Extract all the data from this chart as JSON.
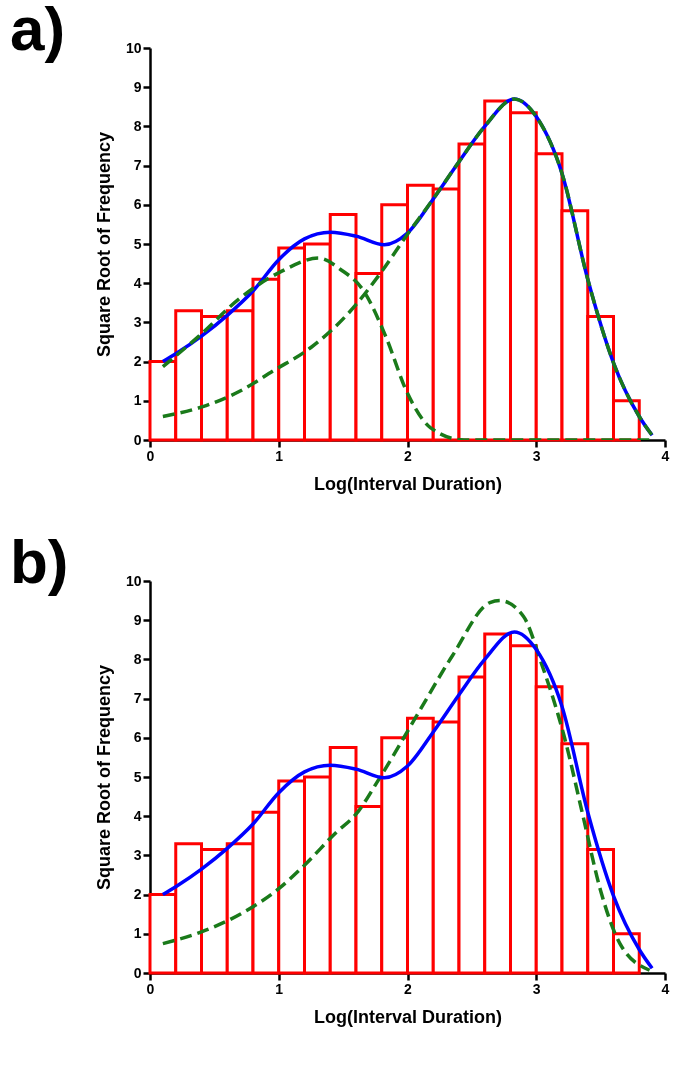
{
  "chart_data": [
    {
      "type": "histogram",
      "title": "a)",
      "xlabel": "Log(Interval Duration)",
      "ylabel": "Square Root of Frequency",
      "xlim": [
        0,
        4
      ],
      "xticks": [
        0,
        1,
        2,
        3,
        4
      ],
      "ylim": [
        0,
        10
      ],
      "yticks": [
        0,
        1,
        2,
        3,
        4,
        5,
        6,
        7,
        8,
        9,
        10
      ],
      "bins": [
        0,
        0.2,
        0.4,
        0.6,
        0.8,
        1.0,
        1.2,
        1.4,
        1.6,
        1.8,
        2.0,
        2.2,
        2.4,
        2.6,
        2.8,
        3.0,
        3.2,
        3.4,
        3.6,
        3.8
      ],
      "series": [
        {
          "type": "histogram",
          "color": "#ff0000",
          "values": [
            2.0,
            3.3,
            3.15,
            3.3,
            4.1,
            4.9,
            5.0,
            5.75,
            4.25,
            6.0,
            6.5,
            6.4,
            7.55,
            8.65,
            8.35,
            7.3,
            5.85,
            3.15,
            1.0
          ]
        },
        {
          "type": "line",
          "color": "#0000ff",
          "line_style": "solid",
          "x": [
            0.1,
            0.2,
            0.4,
            0.6,
            0.8,
            1.0,
            1.2,
            1.4,
            1.6,
            1.82,
            2.0,
            2.2,
            2.4,
            2.6,
            2.83,
            3.0,
            3.2,
            3.4,
            3.6,
            3.8,
            3.9
          ],
          "values": [
            2.0,
            2.2,
            2.65,
            3.18,
            3.8,
            4.6,
            5.13,
            5.3,
            5.2,
            4.98,
            5.28,
            6.15,
            7.1,
            8.0,
            8.7,
            8.25,
            6.8,
            4.1,
            1.97,
            0.6,
            0.12
          ]
        },
        {
          "type": "line",
          "color": "#1a7a1a",
          "line_style": "dashed",
          "x": [
            0.1,
            0.38,
            0.7,
            1.02,
            1.31,
            1.48,
            1.66,
            1.83,
            2.0,
            2.18,
            2.44,
            2.8,
            3.2,
            3.6,
            3.9
          ],
          "values": [
            1.87,
            2.65,
            3.62,
            4.3,
            4.64,
            4.35,
            3.8,
            2.65,
            1.19,
            0.31,
            0,
            0,
            0,
            0,
            0
          ]
        },
        {
          "type": "line",
          "color": "#1a7a1a",
          "line_style": "dashed",
          "x": [
            0.1,
            0.41,
            0.7,
            0.96,
            1.25,
            1.54,
            1.8,
            2.0,
            2.2,
            2.4,
            2.6,
            2.83,
            3.0,
            3.2,
            3.4,
            3.6,
            3.8,
            3.9
          ],
          "values": [
            0.6,
            0.85,
            1.25,
            1.77,
            2.36,
            3.23,
            4.3,
            5.25,
            6.15,
            7.1,
            8.0,
            8.7,
            8.25,
            6.8,
            4.1,
            1.97,
            0.6,
            0.12
          ]
        }
      ]
    },
    {
      "type": "histogram",
      "title": "b)",
      "xlabel": "Log(Interval Duration)",
      "ylabel": "Square Root of Frequency",
      "xlim": [
        0,
        4
      ],
      "xticks": [
        0,
        1,
        2,
        3,
        4
      ],
      "ylim": [
        0,
        10
      ],
      "yticks": [
        0,
        1,
        2,
        3,
        4,
        5,
        6,
        7,
        8,
        9,
        10
      ],
      "bins": [
        0,
        0.2,
        0.4,
        0.6,
        0.8,
        1.0,
        1.2,
        1.4,
        1.6,
        1.8,
        2.0,
        2.2,
        2.4,
        2.6,
        2.8,
        3.0,
        3.2,
        3.4,
        3.6,
        3.8
      ],
      "series": [
        {
          "type": "histogram",
          "color": "#ff0000",
          "values": [
            2.0,
            3.3,
            3.15,
            3.3,
            4.1,
            4.9,
            5.0,
            5.75,
            4.25,
            6.0,
            6.5,
            6.4,
            7.55,
            8.65,
            8.35,
            7.3,
            5.85,
            3.15,
            1.0
          ]
        },
        {
          "type": "line",
          "color": "#1a7a1a",
          "line_style": "dashed",
          "x": [
            0.1,
            0.4,
            0.7,
            1.0,
            1.2,
            1.45,
            1.6,
            1.77,
            2.06,
            2.35,
            2.64,
            2.72,
            2.9,
            3.04,
            3.22,
            3.36,
            3.5,
            3.65,
            3.88
          ],
          "values": [
            0.75,
            1.05,
            1.5,
            2.15,
            2.75,
            3.6,
            4.05,
            4.9,
            6.5,
            8.1,
            9.45,
            9.5,
            9.1,
            7.9,
            6.0,
            4.05,
            2.1,
            0.75,
            0.07
          ]
        },
        {
          "type": "line",
          "color": "#0000ff",
          "line_style": "solid",
          "x": [
            0.1,
            0.2,
            0.4,
            0.6,
            0.8,
            1.0,
            1.2,
            1.4,
            1.6,
            1.82,
            2.0,
            2.2,
            2.4,
            2.6,
            2.83,
            3.0,
            3.2,
            3.4,
            3.6,
            3.8,
            3.9
          ],
          "values": [
            2.0,
            2.2,
            2.65,
            3.18,
            3.8,
            4.6,
            5.13,
            5.3,
            5.2,
            4.98,
            5.28,
            6.15,
            7.1,
            8.0,
            8.7,
            8.25,
            6.8,
            4.1,
            1.97,
            0.6,
            0.12
          ]
        }
      ]
    }
  ]
}
